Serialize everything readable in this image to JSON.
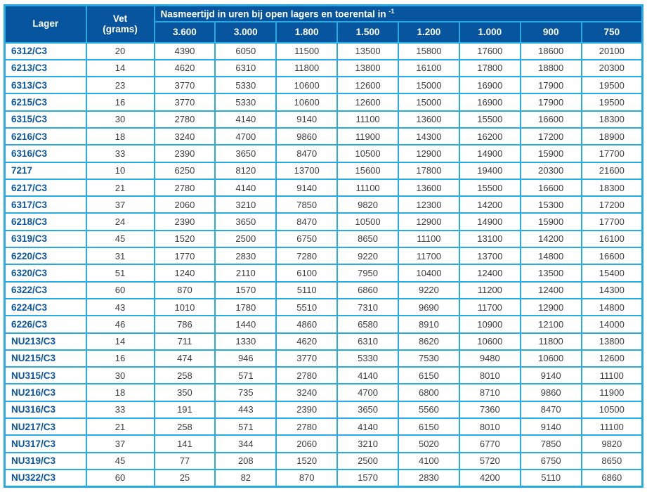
{
  "colors": {
    "border_cyan": "#29abe2",
    "header_blue": "#07549f",
    "lager_text_blue": "#0b57a4",
    "value_text": "#3c3c3e"
  },
  "table": {
    "header": {
      "lager": "Lager",
      "vet_line1": "Vet",
      "vet_line2": "(grams)",
      "nasmeertijd_label": "Nasmeertijd in uren bij open lagers en toerental in ",
      "nasmeertijd_sup": "-1",
      "speed_columns": [
        "3.600",
        "3.000",
        "1.800",
        "1.500",
        "1.200",
        "1.000",
        "900",
        "750"
      ]
    },
    "rows": [
      {
        "lager": "6312/C3",
        "vet": "20",
        "values": [
          "4390",
          "6050",
          "11500",
          "13500",
          "15800",
          "17600",
          "18600",
          "20100"
        ]
      },
      {
        "lager": "6213/C3",
        "vet": "14",
        "values": [
          "4620",
          "6310",
          "11800",
          "13800",
          "16100",
          "17800",
          "18800",
          "20300"
        ]
      },
      {
        "lager": "6313/C3",
        "vet": "23",
        "values": [
          "3770",
          "5330",
          "10600",
          "12600",
          "15000",
          "16900",
          "17900",
          "19500"
        ]
      },
      {
        "lager": "6215/C3",
        "vet": "16",
        "values": [
          "3770",
          "5330",
          "10600",
          "12600",
          "15000",
          "16900",
          "17900",
          "19500"
        ]
      },
      {
        "lager": "6315/C3",
        "vet": "30",
        "values": [
          "2780",
          "4140",
          "9140",
          "11100",
          "13600",
          "15500",
          "16600",
          "18300"
        ]
      },
      {
        "lager": "6216/C3",
        "vet": "18",
        "values": [
          "3240",
          "4700",
          "9860",
          "11900",
          "14300",
          "16200",
          "17200",
          "18900"
        ]
      },
      {
        "lager": "6316/C3",
        "vet": "33",
        "values": [
          "2390",
          "3650",
          "8470",
          "10500",
          "12900",
          "14900",
          "15900",
          "17700"
        ]
      },
      {
        "lager": "7217",
        "vet": "10",
        "values": [
          "6250",
          "8120",
          "13700",
          "15600",
          "17800",
          "19400",
          "20300",
          "21600"
        ]
      },
      {
        "lager": "6217/C3",
        "vet": "21",
        "values": [
          "2780",
          "4140",
          "9140",
          "11100",
          "13600",
          "15500",
          "16600",
          "18300"
        ]
      },
      {
        "lager": "6317/C3",
        "vet": "37",
        "values": [
          "2060",
          "3210",
          "7850",
          "9820",
          "12300",
          "14200",
          "15300",
          "17200"
        ]
      },
      {
        "lager": "6218/C3",
        "vet": "24",
        "values": [
          "2390",
          "3650",
          "8470",
          "10500",
          "12900",
          "14900",
          "15900",
          "17700"
        ]
      },
      {
        "lager": "6319/C3",
        "vet": "45",
        "values": [
          "1520",
          "2500",
          "6750",
          "8650",
          "11100",
          "13100",
          "14200",
          "16100"
        ]
      },
      {
        "lager": "6220/C3",
        "vet": "31",
        "values": [
          "1770",
          "2830",
          "7280",
          "9220",
          "11700",
          "13700",
          "14800",
          "16600"
        ]
      },
      {
        "lager": "6320/C3",
        "vet": "51",
        "values": [
          "1240",
          "2110",
          "6100",
          "7950",
          "10400",
          "12400",
          "13500",
          "15400"
        ]
      },
      {
        "lager": "6322/C3",
        "vet": "60",
        "values": [
          "870",
          "1570",
          "5110",
          "6860",
          "9220",
          "11200",
          "12400",
          "14300"
        ]
      },
      {
        "lager": "6224/C3",
        "vet": "43",
        "values": [
          "1010",
          "1780",
          "5510",
          "7310",
          "9690",
          "11700",
          "12900",
          "14800"
        ]
      },
      {
        "lager": "6226/C3",
        "vet": "46",
        "values": [
          "786",
          "1440",
          "4860",
          "6580",
          "8910",
          "10900",
          "12100",
          "14000"
        ]
      },
      {
        "lager": "NU213/C3",
        "vet": "14",
        "values": [
          "711",
          "1330",
          "4620",
          "6310",
          "8620",
          "10600",
          "11800",
          "13800"
        ]
      },
      {
        "lager": "NU215/C3",
        "vet": "16",
        "values": [
          "474",
          "946",
          "3770",
          "5330",
          "7530",
          "9480",
          "10600",
          "12600"
        ]
      },
      {
        "lager": "NU315/C3",
        "vet": "30",
        "values": [
          "258",
          "571",
          "2780",
          "4140",
          "6150",
          "8010",
          "9140",
          "11100"
        ]
      },
      {
        "lager": "NU216/C3",
        "vet": "18",
        "values": [
          "350",
          "735",
          "3240",
          "4700",
          "6800",
          "8710",
          "9860",
          "11900"
        ]
      },
      {
        "lager": "NU316/C3",
        "vet": "33",
        "values": [
          "191",
          "443",
          "2390",
          "3650",
          "5560",
          "7360",
          "8470",
          "10500"
        ]
      },
      {
        "lager": "NU217/C3",
        "vet": "21",
        "values": [
          "258",
          "571",
          "2780",
          "4140",
          "6150",
          "8010",
          "9140",
          "11100"
        ]
      },
      {
        "lager": "NU317/C3",
        "vet": "37",
        "values": [
          "141",
          "344",
          "2060",
          "3210",
          "5020",
          "6770",
          "7850",
          "9820"
        ]
      },
      {
        "lager": "NU319/C3",
        "vet": "45",
        "values": [
          "77",
          "208",
          "1520",
          "2500",
          "4100",
          "5720",
          "6750",
          "8650"
        ]
      },
      {
        "lager": "NU322/C3",
        "vet": "60",
        "values": [
          "25",
          "82",
          "870",
          "1570",
          "2830",
          "4200",
          "5110",
          "6860"
        ]
      }
    ]
  }
}
